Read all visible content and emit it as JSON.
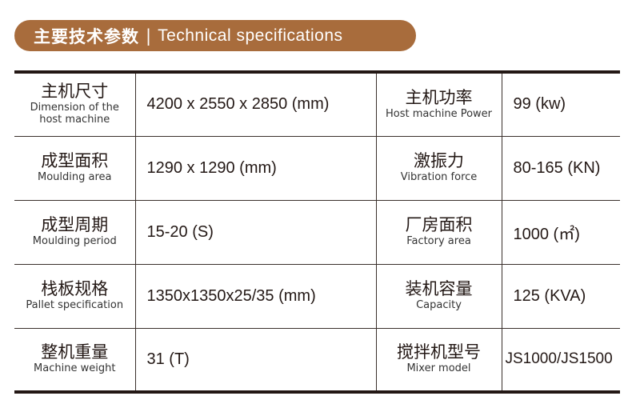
{
  "banner": {
    "title_cn": "主要技术参数",
    "separator": "|",
    "title_en": "Technical specifications",
    "color": "#a86c3c"
  },
  "rows": [
    {
      "left": {
        "cn": "主机尺寸",
        "en": "Dimension of the host machine",
        "value": "4200 x 2550 x 2850 (mm)"
      },
      "right": {
        "cn": "主机功率",
        "en": "Host machine Power",
        "value": "99 (kw)"
      }
    },
    {
      "left": {
        "cn": "成型面积",
        "en": "Moulding area",
        "value": "1290 x 1290 (mm)"
      },
      "right": {
        "cn": "激振力",
        "en": "Vibration force",
        "value": "80-165 (KN)"
      }
    },
    {
      "left": {
        "cn": "成型周期",
        "en": "Moulding period",
        "value": "15-20 (S)"
      },
      "right": {
        "cn": "厂房面积",
        "en": "Factory area",
        "value": "1000 (㎡)"
      }
    },
    {
      "left": {
        "cn": "栈板规格",
        "en": "Pallet specification",
        "value": "1350x1350x25/35 (mm)"
      },
      "right": {
        "cn": "装机容量",
        "en": "Capacity",
        "value": "125 (KVA)"
      }
    },
    {
      "left": {
        "cn": "整机重量",
        "en": "Machine weight",
        "value": "31 (T)"
      },
      "right": {
        "cn": "搅拌机型号",
        "en": "Mixer model",
        "value": "JS1000/JS1500"
      }
    }
  ]
}
